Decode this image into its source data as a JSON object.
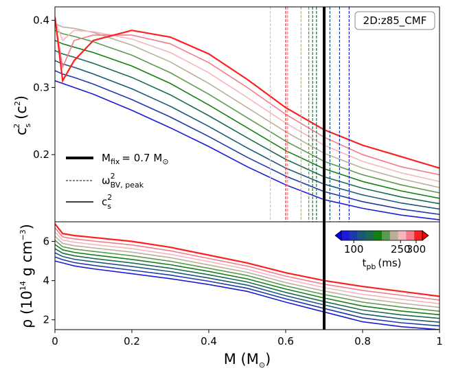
{
  "chart_data": [
    {
      "type": "line",
      "xlim": [
        0,
        1.0
      ],
      "ylim": [
        0.1,
        0.42
      ],
      "yticks": [
        0.2,
        0.3,
        0.4
      ],
      "ylabel": [
        "c",
        "s",
        "2",
        "(c",
        "2",
        ")"
      ],
      "annotation": "2D:z85_CMF",
      "x": [
        0,
        0.02,
        0.05,
        0.1,
        0.2,
        0.3,
        0.4,
        0.5,
        0.6,
        0.7,
        0.8,
        0.9,
        1.0
      ],
      "series": [
        {
          "color": "#1a1ad8",
          "values": [
            0.31,
            0.306,
            0.3,
            0.29,
            0.266,
            0.24,
            0.212,
            0.182,
            0.155,
            0.133,
            0.12,
            0.11,
            0.103
          ]
        },
        {
          "color": "#1c3aa8",
          "values": [
            0.325,
            0.32,
            0.315,
            0.305,
            0.282,
            0.256,
            0.227,
            0.196,
            0.168,
            0.145,
            0.13,
            0.119,
            0.111
          ]
        },
        {
          "color": "#1a5878",
          "values": [
            0.34,
            0.335,
            0.33,
            0.32,
            0.298,
            0.272,
            0.242,
            0.21,
            0.18,
            0.156,
            0.14,
            0.128,
            0.119
          ]
        },
        {
          "color": "#1a6a50",
          "values": [
            0.355,
            0.35,
            0.345,
            0.336,
            0.315,
            0.289,
            0.258,
            0.225,
            0.193,
            0.167,
            0.15,
            0.137,
            0.127
          ]
        },
        {
          "color": "#108010",
          "values": [
            0.37,
            0.365,
            0.36,
            0.352,
            0.332,
            0.306,
            0.274,
            0.24,
            0.206,
            0.179,
            0.16,
            0.146,
            0.135
          ]
        },
        {
          "color": "#5c9a4c",
          "values": [
            0.385,
            0.38,
            0.376,
            0.368,
            0.348,
            0.322,
            0.29,
            0.255,
            0.22,
            0.19,
            0.17,
            0.155,
            0.143
          ]
        },
        {
          "color": "#b8b096",
          "values": [
            0.395,
            0.39,
            0.388,
            0.382,
            0.363,
            0.338,
            0.306,
            0.27,
            0.234,
            0.202,
            0.18,
            0.164,
            0.151
          ]
        },
        {
          "color": "#f6b4bc",
          "values": [
            0.4,
            0.37,
            0.385,
            0.383,
            0.372,
            0.352,
            0.322,
            0.285,
            0.247,
            0.214,
            0.19,
            0.173,
            0.16
          ]
        },
        {
          "color": "#f47a8a",
          "values": [
            0.402,
            0.33,
            0.37,
            0.378,
            0.378,
            0.365,
            0.337,
            0.3,
            0.26,
            0.226,
            0.2,
            0.182,
            0.17
          ]
        },
        {
          "color": "#ff1e1e",
          "values": [
            0.405,
            0.31,
            0.34,
            0.37,
            0.385,
            0.375,
            0.35,
            0.312,
            0.27,
            0.237,
            0.214,
            0.197,
            0.18
          ]
        }
      ],
      "peak_lines": [
        0.765,
        0.74,
        0.715,
        0.68,
        0.67,
        0.66,
        0.64,
        0.56,
        0.605,
        0.6
      ],
      "legend": [
        [
          "M",
          "fix",
          "= 0.7 M",
          "⊙"
        ],
        [
          "ω",
          "2",
          "BV, peak"
        ],
        [
          "c",
          "2",
          "s"
        ]
      ]
    },
    {
      "type": "line",
      "xlim": [
        0,
        1.0
      ],
      "ylim": [
        1.5,
        7.0
      ],
      "yticks": [
        2,
        4,
        6
      ],
      "xticks": [
        0.0,
        0.2,
        0.4,
        0.6,
        0.8,
        1.0
      ],
      "ylabel": [
        "ρ (10",
        "14",
        " g cm",
        "−3",
        ")"
      ],
      "xlabel": [
        "M (M",
        "⊙",
        ")"
      ],
      "x": [
        0,
        0.02,
        0.05,
        0.1,
        0.2,
        0.3,
        0.4,
        0.5,
        0.6,
        0.7,
        0.8,
        0.9,
        1.0
      ],
      "series": [
        {
          "color": "#1a1ad8",
          "values": [
            5.0,
            4.9,
            4.75,
            4.6,
            4.35,
            4.1,
            3.8,
            3.45,
            2.9,
            2.4,
            1.9,
            1.65,
            1.5
          ]
        },
        {
          "color": "#1c3aa8",
          "values": [
            5.21,
            5.07,
            4.92,
            4.78,
            4.53,
            4.28,
            3.97,
            3.61,
            3.07,
            2.58,
            2.1,
            1.85,
            1.69
          ]
        },
        {
          "color": "#1a5878",
          "values": [
            5.42,
            5.23,
            5.09,
            4.96,
            4.72,
            4.46,
            4.13,
            3.77,
            3.23,
            2.76,
            2.3,
            2.05,
            1.88
          ]
        },
        {
          "color": "#1a6a50",
          "values": [
            5.63,
            5.4,
            5.27,
            5.13,
            4.9,
            4.63,
            4.3,
            3.93,
            3.4,
            2.93,
            2.5,
            2.25,
            2.07
          ]
        },
        {
          "color": "#108010",
          "values": [
            5.84,
            5.57,
            5.44,
            5.31,
            5.08,
            4.81,
            4.47,
            4.09,
            3.57,
            3.11,
            2.7,
            2.45,
            2.26
          ]
        },
        {
          "color": "#5c9a4c",
          "values": [
            6.06,
            5.73,
            5.61,
            5.49,
            5.27,
            4.99,
            4.63,
            4.26,
            3.73,
            3.29,
            2.9,
            2.65,
            2.44
          ]
        },
        {
          "color": "#b8b096",
          "values": [
            6.27,
            5.9,
            5.78,
            5.67,
            5.45,
            5.17,
            4.8,
            4.42,
            3.9,
            3.47,
            3.1,
            2.85,
            2.63
          ]
        },
        {
          "color": "#f6b4bc",
          "values": [
            6.48,
            6.07,
            5.96,
            5.84,
            5.63,
            5.34,
            4.97,
            4.58,
            4.07,
            3.64,
            3.3,
            3.05,
            2.82
          ]
        },
        {
          "color": "#f47a8a",
          "values": [
            6.69,
            6.23,
            6.13,
            6.02,
            5.82,
            5.52,
            5.13,
            4.74,
            4.23,
            3.82,
            3.5,
            3.25,
            3.01
          ]
        },
        {
          "color": "#ff1e1e",
          "values": [
            6.9,
            6.4,
            6.3,
            6.2,
            6.0,
            5.7,
            5.3,
            4.9,
            4.4,
            4.0,
            3.7,
            3.45,
            3.2
          ]
        }
      ],
      "fix_line": 0.7,
      "colorbar": {
        "clim": [
          60,
          320
        ],
        "ticks": [
          100,
          250,
          300
        ],
        "label": [
          "t",
          "pb",
          "(ms)"
        ]
      }
    }
  ]
}
